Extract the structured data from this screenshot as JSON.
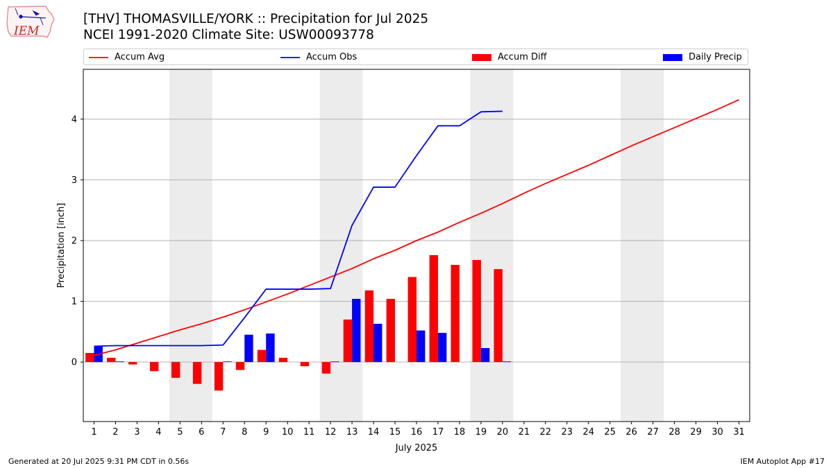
{
  "header": {
    "title": "[THV] THOMASVILLE/YORK :: Precipitation for Jul 2025",
    "subtitle": "NCEI 1991-2020 Climate Site: USW00093778"
  },
  "logo": {
    "text": "IEM",
    "icon": "iem-iowa-logo"
  },
  "footer": {
    "generated": "Generated at 20 Jul 2025 9:31 PM CDT in 0.56s",
    "app": "IEM Autoplot App #17"
  },
  "colors": {
    "accum_avg": "#ff0000",
    "accum_obs": "#0000ff",
    "accum_diff": "#ff0000",
    "daily_precip": "#0000ff",
    "weekend_shade": "#ececec",
    "grid": "#b0b0b0"
  },
  "chart_data": {
    "type": "bar",
    "title": "[THV] THOMASVILLE/YORK :: Precipitation for Jul 2025",
    "subtitle": "NCEI 1991-2020 Climate Site: USW00093778",
    "xlabel": "July 2025",
    "ylabel": "Precipitation [inch]",
    "xlim": [
      0.5,
      31.5
    ],
    "ylim": [
      -0.98,
      4.82
    ],
    "yticks": [
      0,
      1,
      2,
      3,
      4
    ],
    "x": [
      1,
      2,
      3,
      4,
      5,
      6,
      7,
      8,
      9,
      10,
      11,
      12,
      13,
      14,
      15,
      16,
      17,
      18,
      19,
      20,
      21,
      22,
      23,
      24,
      25,
      26,
      27,
      28,
      29,
      30,
      31
    ],
    "shaded_days": [
      [
        4.5,
        6.5
      ],
      [
        11.5,
        13.5
      ],
      [
        18.5,
        20.5
      ],
      [
        25.5,
        27.5
      ]
    ],
    "grid": "horizontal",
    "legend_position": "top",
    "legend": [
      "Accum Avg",
      "Accum Obs",
      "Accum Diff",
      "Daily Precip"
    ],
    "series": [
      {
        "name": "Accum Avg",
        "kind": "line",
        "color": "#ff0000",
        "x": [
          1,
          2,
          3,
          4,
          5,
          6,
          7,
          8,
          9,
          10,
          11,
          12,
          13,
          14,
          15,
          16,
          17,
          18,
          19,
          20,
          21,
          22,
          23,
          24,
          25,
          26,
          27,
          28,
          29,
          30,
          31
        ],
        "values": [
          0.11,
          0.2,
          0.31,
          0.42,
          0.53,
          0.63,
          0.74,
          0.86,
          0.99,
          1.12,
          1.26,
          1.4,
          1.54,
          1.7,
          1.84,
          2.0,
          2.14,
          2.3,
          2.45,
          2.61,
          2.78,
          2.94,
          3.09,
          3.24,
          3.4,
          3.56,
          3.71,
          3.86,
          4.01,
          4.16,
          4.32
        ]
      },
      {
        "name": "Accum Obs",
        "kind": "line",
        "color": "#0000ff",
        "x": [
          1,
          2,
          3,
          4,
          5,
          6,
          7,
          8,
          9,
          10,
          11,
          12,
          13,
          14,
          15,
          16,
          17,
          18,
          19,
          20
        ],
        "values": [
          0.26,
          0.27,
          0.27,
          0.27,
          0.27,
          0.27,
          0.28,
          0.73,
          1.2,
          1.2,
          1.2,
          1.21,
          2.25,
          2.88,
          2.88,
          3.4,
          3.89,
          3.89,
          4.12,
          4.13
        ]
      },
      {
        "name": "Accum Diff",
        "kind": "bar",
        "color": "#ff0000",
        "offset": -0.2,
        "x": [
          1,
          2,
          3,
          4,
          5,
          6,
          7,
          8,
          9,
          10,
          11,
          12,
          13,
          14,
          15,
          16,
          17,
          18,
          19,
          20
        ],
        "values": [
          0.15,
          0.07,
          -0.04,
          -0.15,
          -0.26,
          -0.36,
          -0.47,
          -0.13,
          0.2,
          0.07,
          -0.07,
          -0.19,
          0.7,
          1.18,
          1.04,
          1.4,
          1.76,
          1.6,
          1.68,
          1.53
        ]
      },
      {
        "name": "Daily Precip",
        "kind": "bar",
        "color": "#0000ff",
        "offset": 0.2,
        "x": [
          1,
          2,
          3,
          4,
          5,
          6,
          7,
          8,
          9,
          10,
          11,
          12,
          13,
          14,
          15,
          16,
          17,
          18,
          19,
          20
        ],
        "values": [
          0.26,
          0.01,
          0.0,
          0.0,
          0.0,
          0.0,
          0.01,
          0.45,
          0.47,
          0.0,
          0.0,
          0.01,
          1.04,
          0.63,
          0.0,
          0.52,
          0.48,
          0.0,
          0.23,
          0.01
        ]
      }
    ]
  }
}
